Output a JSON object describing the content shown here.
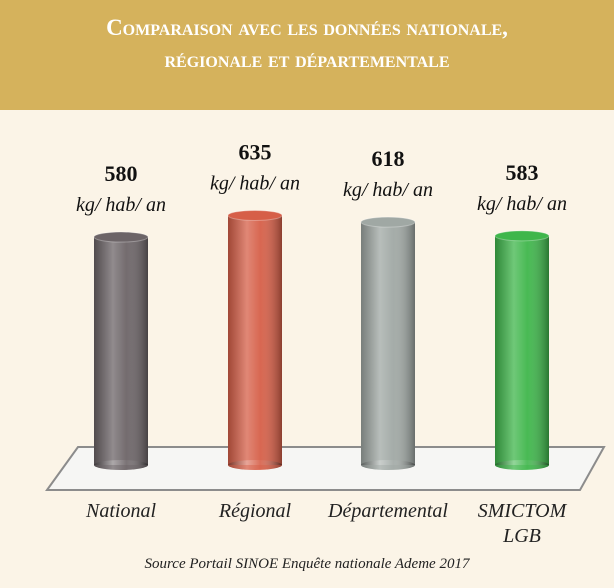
{
  "chart_data": {
    "type": "bar",
    "title": "Comparaison avec les données nationale, régionale et départementale",
    "categories": [
      "National",
      "Régional",
      "Départemental",
      "SMICTOM LGB"
    ],
    "values": [
      580,
      635,
      618,
      583
    ],
    "value_unit": "kg/ hab/ an",
    "colors": [
      "#6c6467",
      "#d65f48",
      "#a0a8a4",
      "#3fb64b"
    ],
    "source": "Source Portail SINOE Enquête nationale Ademe 2017"
  }
}
